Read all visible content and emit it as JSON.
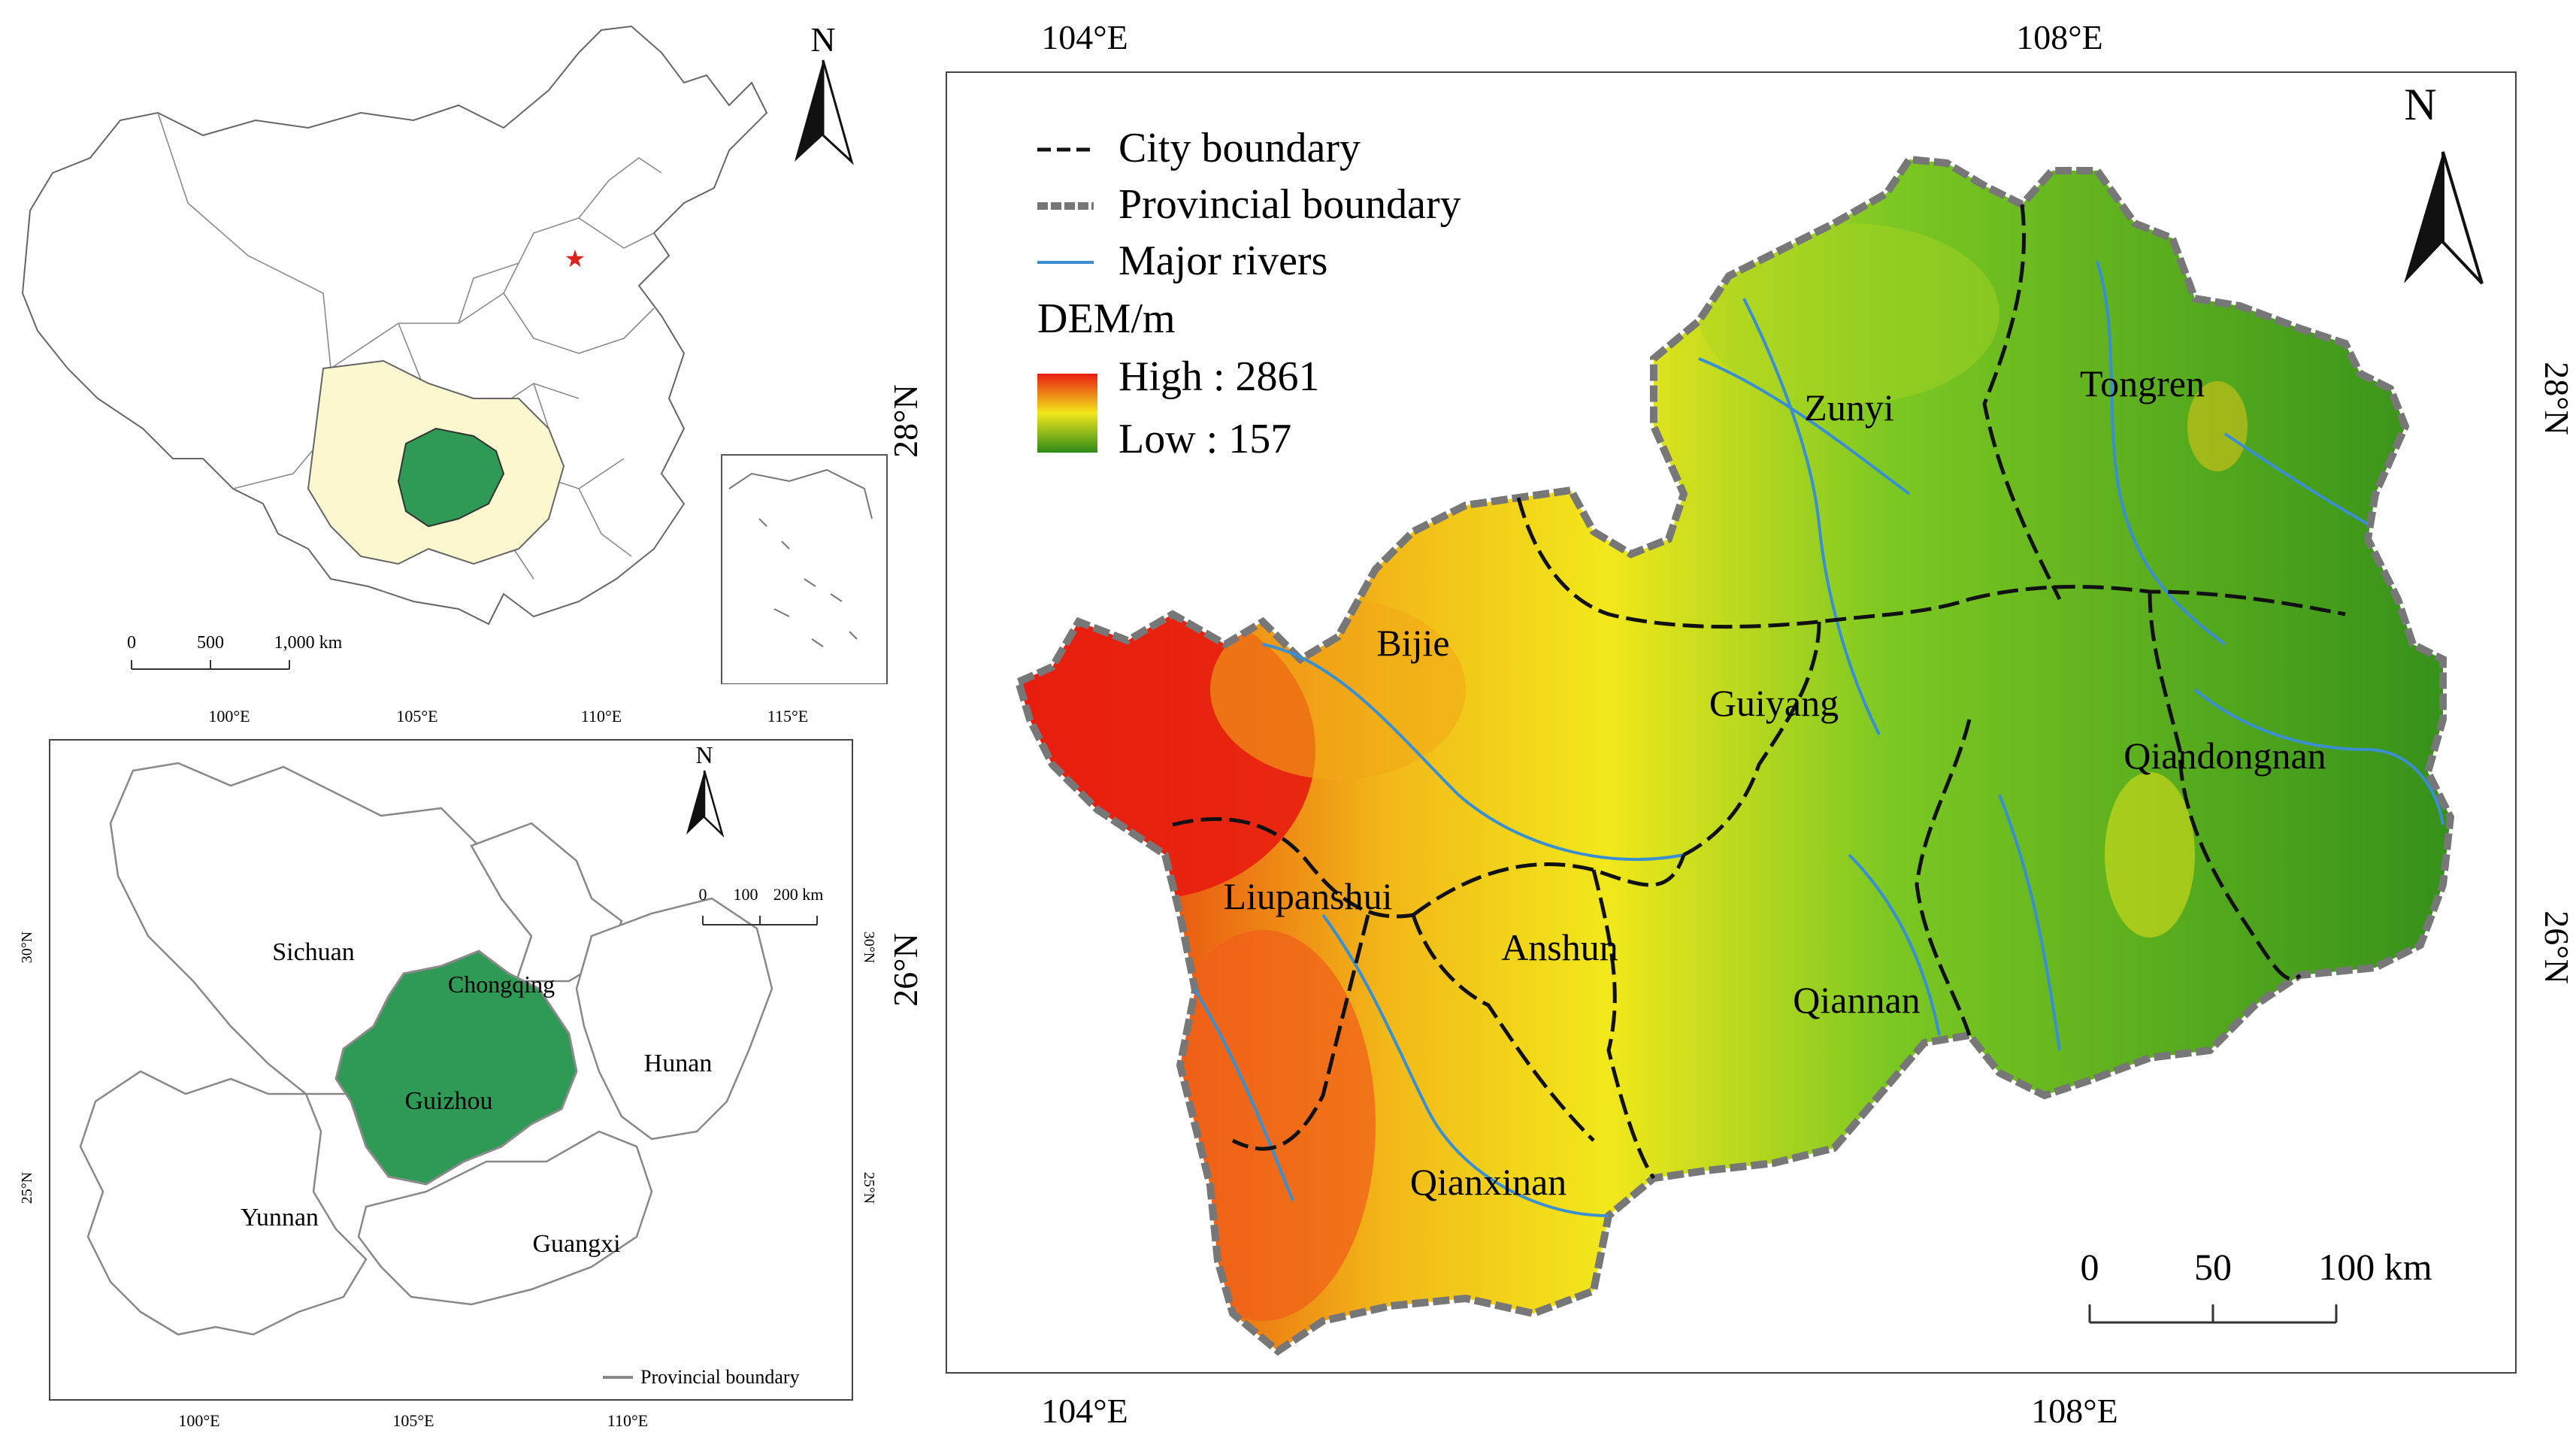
{
  "china_map": {
    "scale_labels": [
      "0",
      "500",
      "1,000 km"
    ],
    "north_label": "N"
  },
  "region_map": {
    "north_label": "N",
    "scale_labels": [
      "0",
      "100",
      "200 km"
    ],
    "legend_label": "Provincial boundary",
    "top_ticks": [
      "100°E",
      "105°E",
      "110°E",
      "115°E"
    ],
    "bottom_ticks": [
      "100°E",
      "105°E",
      "110°E"
    ],
    "left_ticks": [
      "30°N",
      "25°N"
    ],
    "right_ticks": [
      "30°N",
      "25°N"
    ],
    "provinces": [
      "Sichuan",
      "Chongqing",
      "Hunan",
      "Guizhou",
      "Yunnan",
      "Guangxi"
    ]
  },
  "main_map": {
    "top_ticks": [
      "104°E",
      "108°E"
    ],
    "bottom_ticks": [
      "104°E",
      "108°E"
    ],
    "left_ticks": [
      "28°N",
      "26°N"
    ],
    "right_ticks": [
      "28°N",
      "26°N"
    ],
    "north_label": "N",
    "legend": {
      "city_boundary": "City boundary",
      "provincial_boundary": "Provincial boundary",
      "major_rivers": "Major rivers",
      "dem_title": "DEM/m",
      "high": "High : 2861",
      "low": "Low : 157"
    },
    "cities": [
      "Zunyi",
      "Tongren",
      "Bijie",
      "Guiyang",
      "Qiandongnan",
      "Liupanshui",
      "Anshun",
      "Qiannan",
      "Qianxinan"
    ],
    "scale_labels": [
      "0",
      "50",
      "100 km"
    ]
  },
  "colors": {
    "guizhou_fill": "#2e9a55",
    "neighbor_fill": "#fbf7cf",
    "river": "#3a8fd0",
    "dem_high": "#e81c10",
    "dem_mid": "#f2e81a",
    "dem_low": "#2d8a18"
  }
}
